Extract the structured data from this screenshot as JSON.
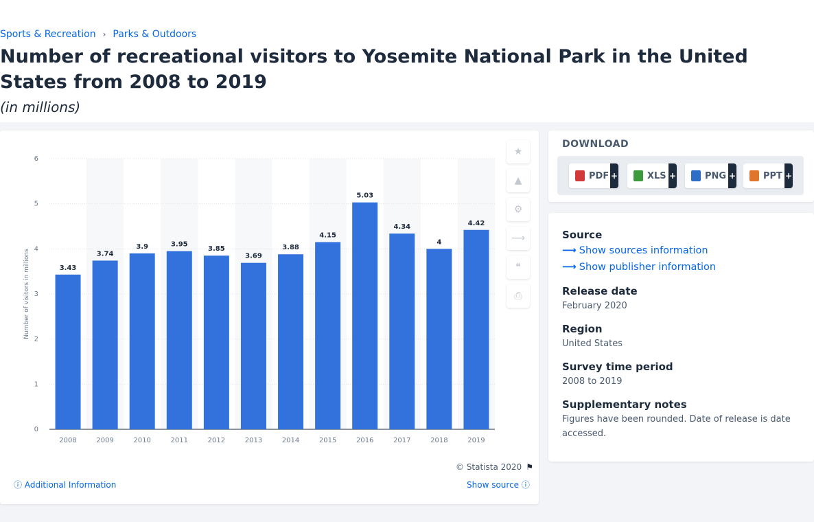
{
  "breadcrumb": {
    "items": [
      "Sports & Recreation",
      "Parks & Outdoors"
    ],
    "separator": "›"
  },
  "page": {
    "title": "Number of recreational visitors to Yosemite National Park in the United States from 2008 to 2019",
    "subtitle": "(in millions)"
  },
  "chart_data": {
    "type": "bar",
    "categories": [
      "2008",
      "2009",
      "2010",
      "2011",
      "2012",
      "2013",
      "2014",
      "2015",
      "2016",
      "2017",
      "2018",
      "2019"
    ],
    "values": [
      3.43,
      3.74,
      3.9,
      3.95,
      3.85,
      3.69,
      3.88,
      4.15,
      5.03,
      4.34,
      4,
      4.42
    ],
    "value_labels": [
      "3.43",
      "3.74",
      "3.9",
      "3.95",
      "3.85",
      "3.69",
      "3.88",
      "4.15",
      "5.03",
      "4.34",
      "4",
      "4.42"
    ],
    "ylabel": "Number of visitors in millions",
    "xlabel": "",
    "ylim": [
      0,
      6
    ],
    "yticks": [
      0,
      1,
      2,
      3,
      4,
      5,
      6
    ],
    "grid": true,
    "bar_color": "#3372dc"
  },
  "chart_footer": {
    "credit": "© Statista 2020",
    "additional_info": "Additional Information",
    "show_source": "Show source"
  },
  "tools": [
    "star-icon",
    "bell-icon",
    "gear-icon",
    "share-icon",
    "quote-icon",
    "print-icon"
  ],
  "download": {
    "title": "DOWNLOAD",
    "buttons": [
      {
        "label": "PDF",
        "plus": "+",
        "color": "#d23a3a"
      },
      {
        "label": "XLS",
        "plus": "+",
        "color": "#3b9a3b"
      },
      {
        "label": "PNG",
        "plus": "+",
        "color": "#2d6ec9"
      },
      {
        "label": "PPT",
        "plus": "+",
        "color": "#e0762b"
      }
    ]
  },
  "info": {
    "source_heading": "Source",
    "show_sources": "Show sources information",
    "show_publisher": "Show publisher information",
    "release_heading": "Release date",
    "release_value": "February 2020",
    "region_heading": "Region",
    "region_value": "United States",
    "survey_heading": "Survey time period",
    "survey_value": "2008 to 2019",
    "notes_heading": "Supplementary notes",
    "notes_value": "Figures have been rounded. Date of release is date accessed."
  }
}
